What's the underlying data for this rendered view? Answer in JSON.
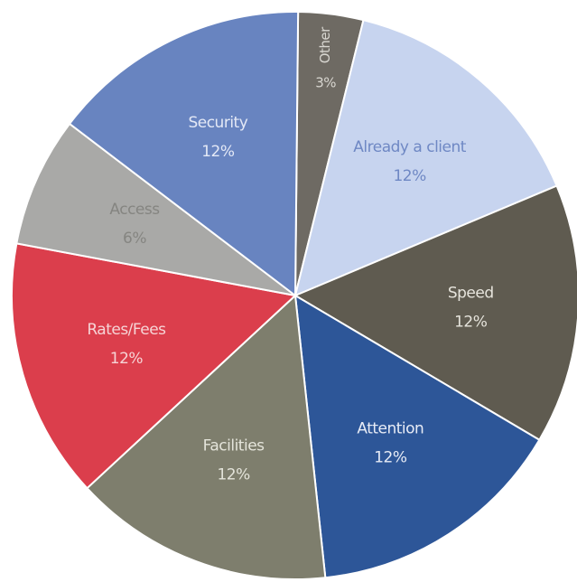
{
  "chart_data": {
    "type": "pie",
    "categories": [
      "Other",
      "Already a client",
      "Speed",
      "Attention",
      "Facilities",
      "Rates/Fees",
      "Access",
      "Security"
    ],
    "values": [
      3,
      12,
      12,
      12,
      12,
      12,
      6,
      12
    ],
    "value_labels": [
      "3%",
      "12%",
      "12%",
      "12%",
      "12%",
      "12%",
      "6%",
      "12%"
    ],
    "colors": [
      "#6e6a63",
      "#c7d4ef",
      "#5f5b50",
      "#2d5698",
      "#7e7e6d",
      "#db3e4c",
      "#a9a9a7",
      "#6884c0"
    ],
    "label_colors": [
      "#d8d6d0",
      "#6f88c4",
      "#e6e4dc",
      "#e8ecf6",
      "#e4e4da",
      "#f6d4d6",
      "#858581",
      "#e4e9f6"
    ]
  }
}
